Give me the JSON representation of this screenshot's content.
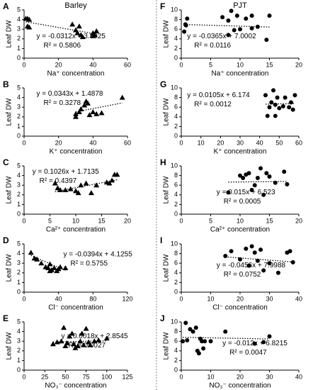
{
  "chart_data": [
    {
      "type": "scatter",
      "panel": "A",
      "title": "Barley",
      "xlabel": "Na⁺ concentration",
      "ylabel": "Leaf DW",
      "marker": "triangle",
      "color": "#000000",
      "x": [
        1,
        2,
        3,
        2,
        3,
        28,
        30,
        31,
        32,
        33,
        34,
        40,
        41,
        42,
        40
      ],
      "values": [
        4.1,
        4.1,
        4.0,
        3.3,
        3.2,
        3.5,
        2.9,
        2.6,
        3.3,
        2.4,
        2.2,
        2.6,
        2.4,
        2.8,
        2.3
      ],
      "xlim": [
        0,
        60
      ],
      "xticks": [
        0,
        20,
        40,
        60
      ],
      "ylim": [
        0,
        5
      ],
      "yticks": [
        0,
        1,
        2,
        3,
        4,
        5
      ],
      "trend": {
        "slope": -0.0312,
        "intercept": 3.8025
      },
      "equation": "y = -0.0312x + 3.8025",
      "r2": "R² = 0.5806"
    },
    {
      "type": "scatter",
      "panel": "B",
      "xlabel": "K⁺ concentration",
      "ylabel": "Leaf DW",
      "marker": "triangle",
      "color": "#000000",
      "x": [
        30,
        32,
        33,
        35,
        36,
        37,
        38,
        40,
        42,
        45,
        30,
        57
      ],
      "values": [
        2.3,
        2.5,
        2.8,
        3.2,
        3.6,
        3.4,
        2.2,
        2.5,
        2.3,
        2.4,
        2.0,
        4.0
      ],
      "xlim": [
        0,
        60
      ],
      "xticks": [
        0,
        20,
        40,
        60
      ],
      "ylim": [
        0,
        5
      ],
      "yticks": [
        0,
        1,
        2,
        3,
        4,
        5
      ],
      "trend": {
        "slope": 0.0343,
        "intercept": 1.4878
      },
      "equation": "y = 0.0343x + 1.4878",
      "r2": "R² = 0.3278"
    },
    {
      "type": "scatter",
      "panel": "C",
      "xlabel": "Ca²⁺ concentration",
      "ylabel": "Leaf DW",
      "marker": "triangle",
      "color": "#000000",
      "x": [
        6,
        6.5,
        7,
        8,
        9,
        10,
        10.5,
        11,
        12,
        13,
        14,
        16,
        17,
        17.5,
        18,
        16.5
      ],
      "values": [
        3.2,
        2.7,
        2.5,
        2.5,
        2.6,
        2.4,
        2.2,
        3.0,
        3.2,
        2.2,
        3.0,
        3.3,
        3.5,
        4.1,
        4.1,
        3.2
      ],
      "xlim": [
        0,
        20
      ],
      "xticks": [
        0,
        5,
        10,
        15,
        20
      ],
      "ylim": [
        0,
        5
      ],
      "yticks": [
        0,
        1,
        2,
        3,
        4,
        5
      ],
      "trend": {
        "slope": 0.1026,
        "intercept": 1.7135
      },
      "equation": "y = 0.1026x + 1.7135",
      "r2": "R² = 0.4397"
    },
    {
      "type": "scatter",
      "panel": "D",
      "xlabel": "Cl⁻ concentration",
      "ylabel": "Leaf DW",
      "marker": "triangle",
      "color": "#000000",
      "x": [
        8,
        12,
        15,
        20,
        25,
        28,
        30,
        32,
        35,
        38,
        40,
        42,
        48,
        30
      ],
      "values": [
        4.1,
        3.5,
        3.4,
        3.0,
        2.6,
        2.5,
        2.9,
        2.3,
        2.5,
        2.2,
        2.4,
        2.6,
        2.5,
        2.2
      ],
      "xlim": [
        0,
        120
      ],
      "xticks": [
        0,
        40,
        80,
        120
      ],
      "ylim": [
        0,
        5
      ],
      "yticks": [
        0,
        1,
        2,
        3,
        4,
        5
      ],
      "trend": {
        "slope": -0.0394,
        "intercept": 4.1255
      },
      "equation": "y = -0.0394x + 4.1255",
      "r2": "R² = 0.5755"
    },
    {
      "type": "scatter",
      "panel": "E",
      "xlabel": "NO₃⁻ concentration",
      "ylabel": "Leaf DW",
      "marker": "triangle",
      "color": "#000000",
      "x": [
        35,
        40,
        45,
        48,
        50,
        52,
        55,
        58,
        60,
        62,
        65,
        68,
        70,
        72,
        75,
        78,
        80,
        85,
        90,
        100
      ],
      "values": [
        2.7,
        2.9,
        3.0,
        4.4,
        2.5,
        2.8,
        3.5,
        3.8,
        2.7,
        2.3,
        2.5,
        3.0,
        3.8,
        2.6,
        4.3,
        2.9,
        2.6,
        3.0,
        3.1,
        3.3
      ],
      "xlim": [
        0,
        125
      ],
      "xticks": [
        0,
        25,
        50,
        75,
        100,
        125
      ],
      "ylim": [
        0,
        5
      ],
      "yticks": [
        0,
        1,
        2,
        3,
        4,
        5
      ],
      "trend": {
        "slope": 0.0018,
        "intercept": 2.8545
      },
      "equation": "y = 0.0018x + 2.8545",
      "r2": "R² = 0.0027"
    },
    {
      "type": "scatter",
      "panel": "F",
      "title": "PJT",
      "xlabel": "Na⁺ concentration",
      "ylabel": "Leaf DW",
      "marker": "circle",
      "color": "#000000",
      "x": [
        0.5,
        0.8,
        1,
        0.7,
        7,
        8,
        8.5,
        9,
        9.5,
        10,
        11,
        12,
        12,
        13,
        14.5,
        15,
        8
      ],
      "values": [
        5.5,
        6.8,
        8.2,
        7.0,
        8.5,
        7.8,
        9.8,
        5.8,
        8.8,
        6.0,
        8.2,
        6.2,
        8.8,
        6.5,
        3.8,
        8.8,
        4.8
      ],
      "xlim": [
        0,
        20
      ],
      "xticks": [
        0,
        5,
        10,
        15,
        20
      ],
      "ylim": [
        0,
        10
      ],
      "yticks": [
        0,
        2,
        4,
        6,
        8,
        10
      ],
      "trend": {
        "slope": -0.0365,
        "intercept": 7.0002
      },
      "equation": "y = -0.0365x + 7.0002",
      "r2": "R² = 0.0116"
    },
    {
      "type": "scatter",
      "panel": "G",
      "xlabel": "K⁺ concentration",
      "ylabel": "Leaf DW",
      "marker": "circle",
      "color": "#000000",
      "x": [
        43,
        44,
        45,
        46,
        47,
        48,
        49,
        50,
        52,
        53,
        55,
        56,
        57,
        58,
        48
      ],
      "values": [
        8.5,
        4.2,
        6.0,
        7.0,
        9.5,
        6.5,
        8.0,
        5.8,
        6.2,
        8.0,
        6.0,
        7.0,
        5.5,
        8.5,
        4.2
      ],
      "xlim": [
        0,
        60
      ],
      "xticks": [
        0,
        10,
        20,
        30,
        40,
        50,
        60
      ],
      "ylim": [
        0,
        10
      ],
      "yticks": [
        0,
        2,
        4,
        6,
        8,
        10
      ],
      "trend": {
        "slope": 0.0105,
        "intercept": 6.174
      },
      "equation": "y = 0.0105x + 6.174",
      "r2": "R² = 0.0012"
    },
    {
      "type": "scatter",
      "panel": "H",
      "xlabel": "Ca²⁺ concentration",
      "ylabel": "Leaf DW",
      "marker": "circle",
      "color": "#000000",
      "x": [
        8,
        10,
        10.5,
        11,
        11.5,
        12,
        13,
        13.5,
        14,
        14.5,
        15,
        16,
        17.5,
        18,
        12.5
      ],
      "values": [
        4.5,
        8.0,
        7.5,
        8.2,
        8.5,
        5.0,
        7.5,
        9.5,
        4.0,
        8.5,
        7.8,
        6.5,
        8.8,
        6.2,
        6.0
      ],
      "xlim": [
        0,
        20
      ],
      "xticks": [
        0,
        5,
        10,
        15,
        20
      ],
      "ylim": [
        0,
        10
      ],
      "yticks": [
        0,
        2,
        4,
        6,
        8,
        10
      ],
      "trend": {
        "slope": 0.015,
        "intercept": 6.523
      },
      "equation": "y = 0.015x + 6.523",
      "r2": "R² = 0.0005"
    },
    {
      "type": "scatter",
      "panel": "I",
      "xlabel": "Cl⁻ concentration",
      "ylabel": "Leaf DW",
      "marker": "circle",
      "color": "#000000",
      "x": [
        15,
        17,
        20,
        22,
        23,
        24,
        25,
        26,
        28,
        30,
        33,
        36,
        38,
        37,
        27
      ],
      "values": [
        7.5,
        8.5,
        6.8,
        9.0,
        5.5,
        9.5,
        8.2,
        6.5,
        4.5,
        6.0,
        4.0,
        8.2,
        6.2,
        8.5,
        8.8
      ],
      "xlim": [
        0,
        40
      ],
      "xticks": [
        0,
        10,
        20,
        30,
        40
      ],
      "ylim": [
        0,
        10
      ],
      "yticks": [
        0,
        2,
        4,
        6,
        8,
        10
      ],
      "trend": {
        "slope": -0.0456,
        "intercept": 7.9988
      },
      "equation": "y = -0.0456x + 7.9988",
      "r2": "R² = 0.0752"
    },
    {
      "type": "scatter",
      "panel": "J",
      "xlabel": "NO₃⁻ concentration",
      "ylabel": "Leaf DW",
      "marker": "circle",
      "color": "#000000",
      "x": [
        0.5,
        1.5,
        3,
        4,
        5,
        5.5,
        6,
        6.5,
        7,
        7.5,
        8,
        10,
        15,
        25,
        28,
        30,
        2
      ],
      "values": [
        6.0,
        9.8,
        8.5,
        8.0,
        8.8,
        4.0,
        3.5,
        6.5,
        6.0,
        4.5,
        6.0,
        6.0,
        8.0,
        5.5,
        5.8,
        7.0,
        6.2
      ],
      "xlim": [
        0,
        40
      ],
      "xticks": [
        0,
        10,
        20,
        30,
        40
      ],
      "ylim": [
        0,
        10
      ],
      "yticks": [
        0,
        2,
        4,
        6,
        8,
        10
      ],
      "trend": {
        "slope": -0.012,
        "intercept": 6.8215
      },
      "equation": "y = -0.012x + 6.8215",
      "r2": "R² = 0.0047"
    }
  ]
}
